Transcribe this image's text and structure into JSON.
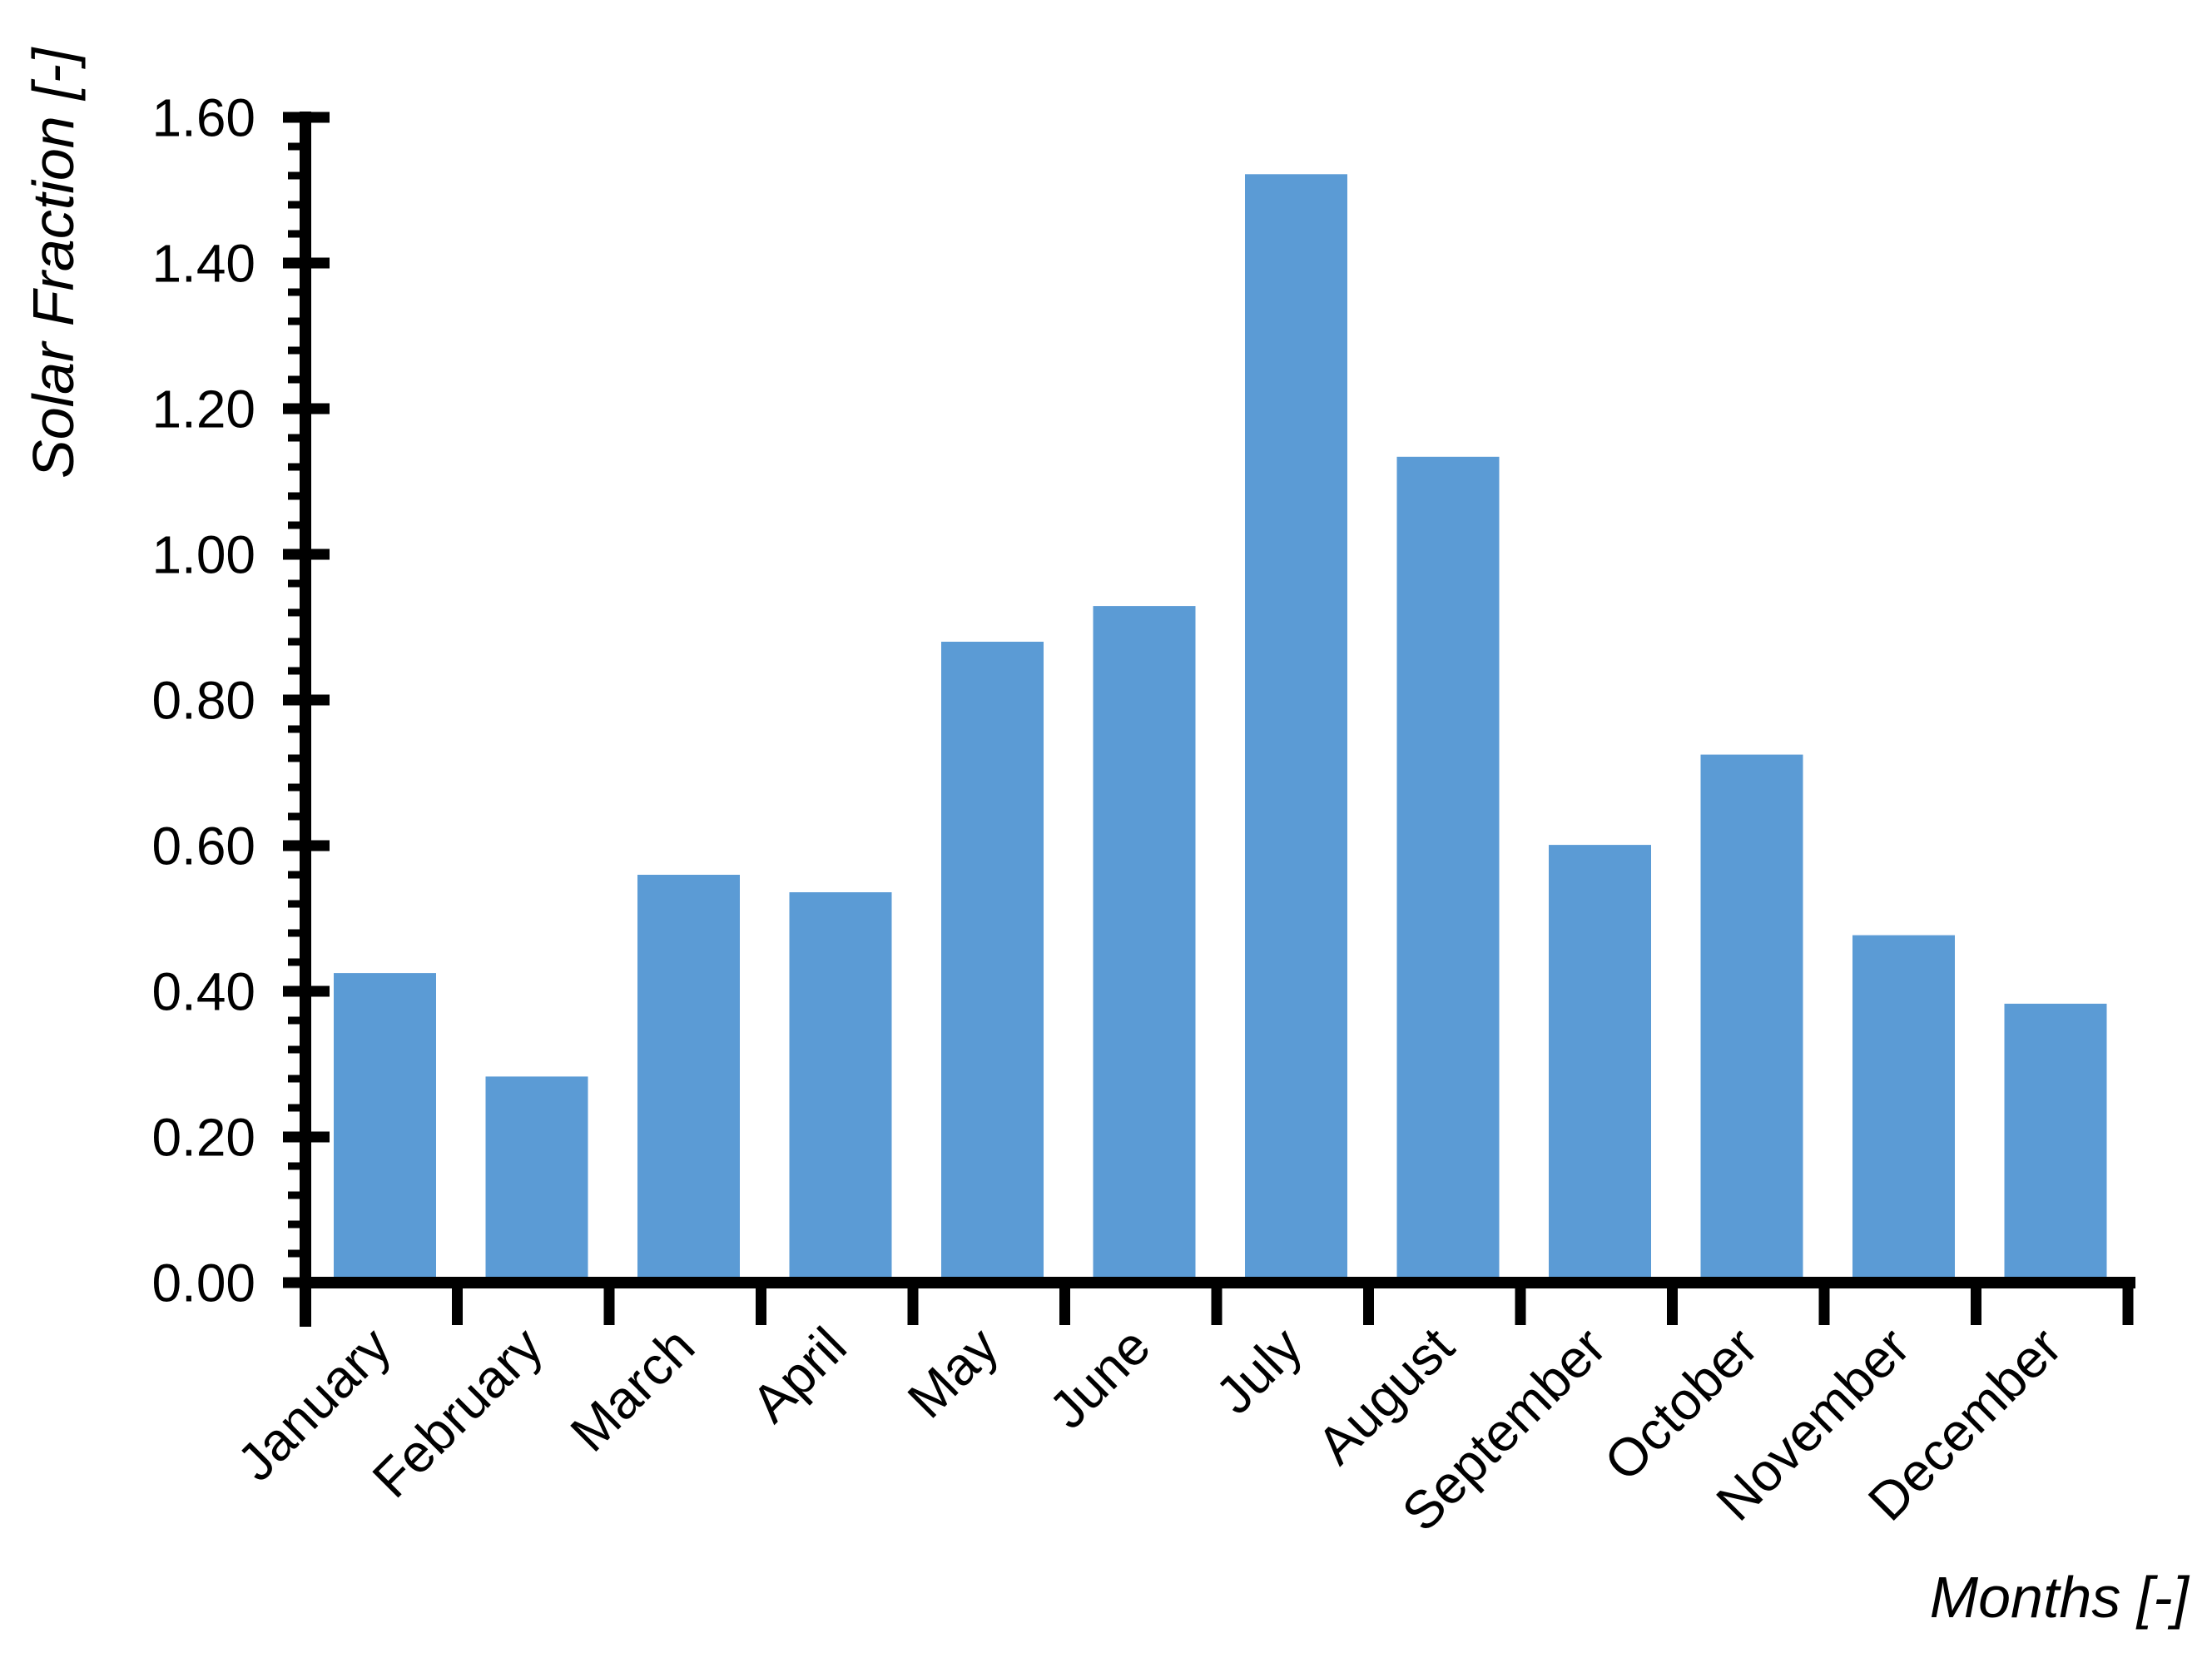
{
  "chart_data": {
    "type": "bar",
    "title": "",
    "categories": [
      "January",
      "February",
      "March",
      "April",
      "May",
      "June",
      "July",
      "August",
      "September",
      "October",
      "November",
      "December"
    ],
    "values": [
      0.425,
      0.283,
      0.56,
      0.536,
      0.88,
      0.929,
      1.522,
      1.134,
      0.601,
      0.725,
      0.477,
      0.383
    ],
    "xlabel": "Months [-]",
    "ylabel": "Solar Fraction [-]",
    "ylim": [
      0.0,
      1.6
    ],
    "y_major_step": 0.2,
    "y_minor_step": 0.04,
    "y_tick_labels": [
      "0.00",
      "0.20",
      "0.40",
      "0.60",
      "0.80",
      "1.00",
      "1.20",
      "1.40",
      "1.60"
    ],
    "grid": false,
    "legend": "none",
    "bar_color": "#5B9BD5",
    "axis_color": "#000000",
    "background_color": "#FFFFFF"
  }
}
